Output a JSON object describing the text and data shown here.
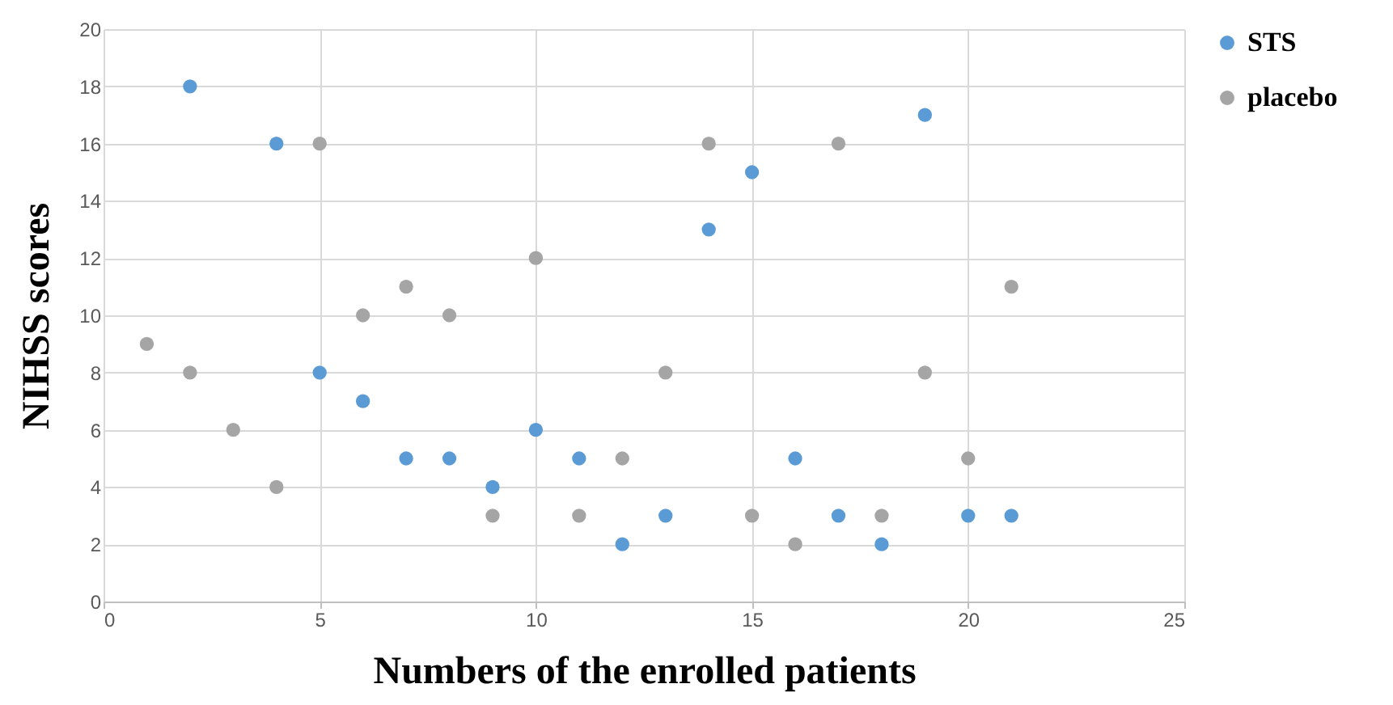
{
  "chart_data": {
    "type": "scatter",
    "xlabel": "Numbers of the enrolled patients",
    "ylabel": "NIHSS scores",
    "xlim": [
      0,
      25
    ],
    "xticks": [
      0,
      5,
      10,
      15,
      20,
      25
    ],
    "ylim": [
      0,
      20
    ],
    "yticks": [
      0,
      2,
      4,
      6,
      8,
      10,
      12,
      14,
      16,
      18,
      20
    ],
    "grid": true,
    "legend": "right",
    "marker": "circle",
    "series": [
      {
        "name": "STS",
        "color": "#5b9bd5",
        "x": [
          2,
          4,
          5,
          6,
          7,
          8,
          9,
          10,
          11,
          12,
          13,
          14,
          15,
          16,
          17,
          18,
          19,
          20,
          21
        ],
        "values": [
          18,
          16,
          8,
          7,
          5,
          5,
          4,
          6,
          5,
          2,
          3,
          13,
          15,
          5,
          3,
          2,
          17,
          3,
          3
        ]
      },
      {
        "name": "placebo",
        "color": "#a5a5a5",
        "x": [
          1,
          2,
          3,
          4,
          5,
          6,
          7,
          8,
          9,
          10,
          11,
          12,
          13,
          14,
          15,
          16,
          17,
          18,
          19,
          20,
          21
        ],
        "values": [
          9,
          8,
          6,
          4,
          16,
          10,
          11,
          10,
          3,
          12,
          3,
          5,
          8,
          16,
          3,
          2,
          16,
          3,
          8,
          5,
          11
        ]
      }
    ]
  }
}
